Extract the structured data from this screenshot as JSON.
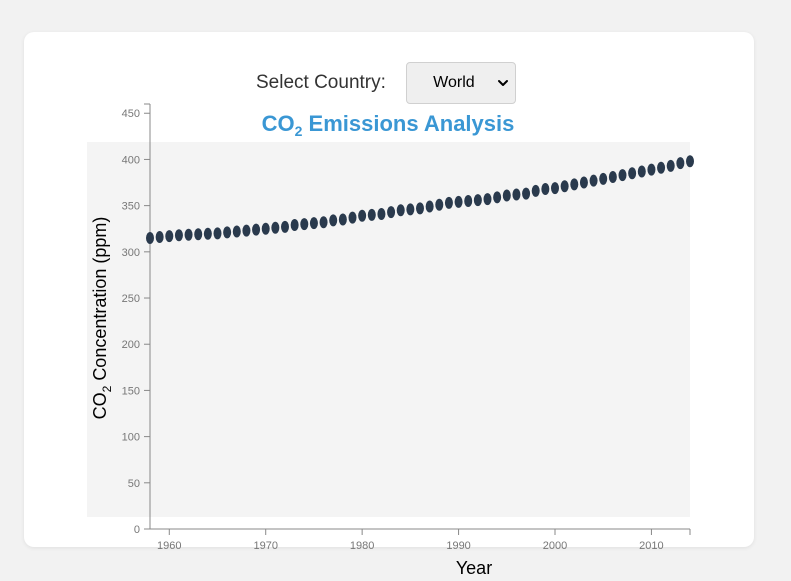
{
  "controls": {
    "country_label": "Select Country:",
    "country_selected": "World"
  },
  "icons": {
    "select_arrow": "chevron-down-icon"
  },
  "colors": {
    "title": "#3a97d4",
    "points": "#2a3a4d",
    "plot_bg": "#f4f4f4",
    "axis": "#888888"
  },
  "chart_data": {
    "type": "scatter",
    "title": {
      "main": "CO",
      "sub": "2",
      "rest": " Emissions Analysis"
    },
    "xlabel": "Year",
    "ylabel": {
      "main": "CO",
      "sub": "2",
      "rest": " Concentration (ppm)"
    },
    "xlim": [
      1958,
      2014
    ],
    "ylim": [
      0,
      460
    ],
    "xticks": [
      1960,
      1970,
      1980,
      1990,
      2000,
      2010
    ],
    "yticks": [
      0,
      50,
      100,
      150,
      200,
      250,
      300,
      350,
      400,
      450
    ],
    "series": [
      {
        "x": [
          1958,
          1959,
          1960,
          1961,
          1962,
          1963,
          1964,
          1965,
          1966,
          1967,
          1968,
          1969,
          1970,
          1971,
          1972,
          1973,
          1974,
          1975,
          1976,
          1977,
          1978,
          1979,
          1980,
          1981,
          1982,
          1983,
          1984,
          1985,
          1986,
          1987,
          1988,
          1989,
          1990,
          1991,
          1992,
          1993,
          1994,
          1995,
          1996,
          1997,
          1998,
          1999,
          2000,
          2001,
          2002,
          2003,
          2004,
          2005,
          2006,
          2007,
          2008,
          2009,
          2010,
          2011,
          2012,
          2013,
          2014
        ],
        "y": [
          315,
          316,
          317,
          318,
          318.5,
          319,
          319.5,
          320,
          321,
          322,
          323,
          324,
          325,
          326,
          327,
          329,
          330,
          331,
          332,
          334,
          335,
          337,
          339,
          340,
          341,
          343,
          345,
          346,
          347,
          349,
          351,
          353,
          354,
          355,
          356,
          357,
          359,
          361,
          362,
          363,
          366,
          368,
          369,
          371,
          373,
          375,
          377,
          379,
          381,
          383,
          385,
          387,
          389,
          391,
          393,
          396,
          398
        ]
      }
    ],
    "grid": false
  }
}
